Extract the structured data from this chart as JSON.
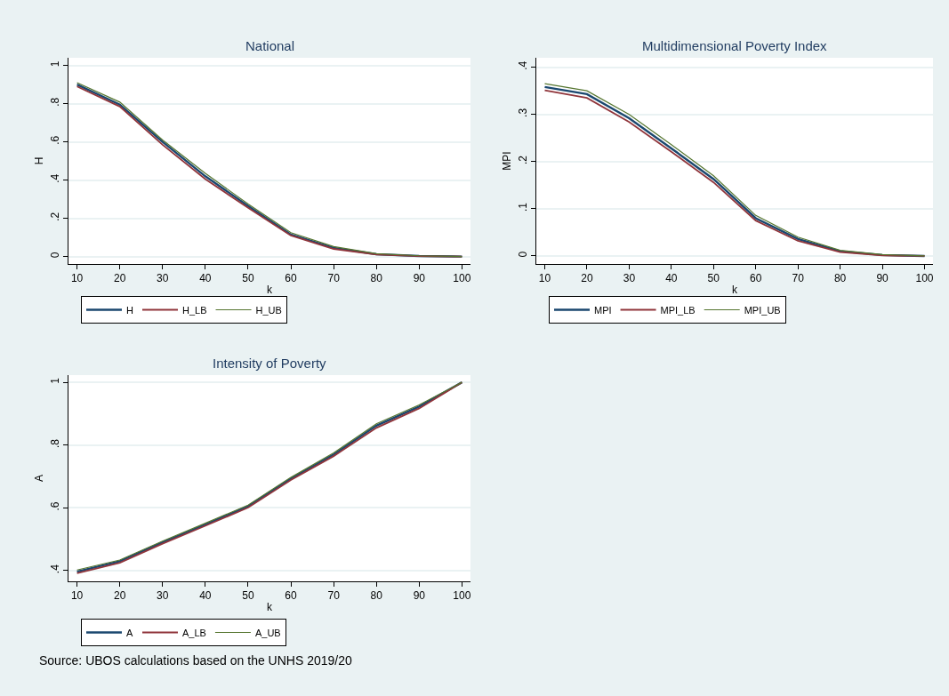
{
  "chart_data": [
    {
      "type": "line",
      "title": "National",
      "xlabel": "k",
      "ylabel": "H",
      "x": [
        10,
        20,
        30,
        40,
        50,
        60,
        70,
        80,
        90,
        100
      ],
      "series": [
        {
          "name": "H",
          "color": "#1a476f",
          "values": [
            0.9,
            0.795,
            0.6,
            0.42,
            0.265,
            0.115,
            0.045,
            0.012,
            0.003,
            0.0
          ]
        },
        {
          "name": "H_LB",
          "color": "#90353b",
          "values": [
            0.89,
            0.785,
            0.585,
            0.405,
            0.255,
            0.11,
            0.04,
            0.01,
            0.002,
            0.0
          ]
        },
        {
          "name": "H_UB",
          "color": "#55752f",
          "values": [
            0.91,
            0.808,
            0.61,
            0.435,
            0.275,
            0.125,
            0.052,
            0.015,
            0.004,
            0.0
          ]
        }
      ],
      "xlim": [
        8,
        102
      ],
      "xticks": [
        10,
        20,
        30,
        40,
        50,
        60,
        70,
        80,
        90,
        100
      ],
      "ylim": [
        -0.039,
        1.04
      ],
      "yticks": [
        0,
        {
          "value": 0.2,
          "label": ".2"
        },
        {
          "value": 0.4,
          "label": ".4"
        },
        {
          "value": 0.6,
          "label": ".6"
        },
        {
          "value": 0.8,
          "label": ".8"
        },
        1
      ],
      "grid": "y",
      "legend": "bottom"
    },
    {
      "type": "line",
      "title": "Multidimensional Poverty Index",
      "xlabel": "k",
      "ylabel": "MPI",
      "x": [
        10,
        20,
        30,
        40,
        50,
        60,
        70,
        80,
        90,
        100
      ],
      "series": [
        {
          "name": "MPI",
          "color": "#1a476f",
          "values": [
            0.358,
            0.343,
            0.292,
            0.228,
            0.163,
            0.08,
            0.036,
            0.01,
            0.002,
            0.0
          ]
        },
        {
          "name": "MPI_LB",
          "color": "#90353b",
          "values": [
            0.351,
            0.335,
            0.284,
            0.221,
            0.156,
            0.075,
            0.032,
            0.008,
            0.001,
            0.0
          ]
        },
        {
          "name": "MPI_UB",
          "color": "#55752f",
          "values": [
            0.365,
            0.35,
            0.3,
            0.236,
            0.17,
            0.086,
            0.04,
            0.012,
            0.003,
            0.0
          ]
        }
      ],
      "xlim": [
        8,
        102
      ],
      "xticks": [
        10,
        20,
        30,
        40,
        50,
        60,
        70,
        80,
        90,
        100
      ],
      "ylim": [
        -0.017,
        0.42
      ],
      "yticks": [
        0,
        {
          "value": 0.1,
          "label": ".1"
        },
        {
          "value": 0.2,
          "label": ".2"
        },
        {
          "value": 0.3,
          "label": ".3"
        },
        {
          "value": 0.4,
          "label": ".4"
        }
      ],
      "grid": "y",
      "legend": "bottom"
    },
    {
      "type": "line",
      "title": "Intensity of Poverty",
      "xlabel": "k",
      "ylabel": "A",
      "x": [
        10,
        20,
        30,
        40,
        50,
        60,
        70,
        80,
        90,
        100
      ],
      "series": [
        {
          "name": "A",
          "color": "#1a476f",
          "values": [
            0.397,
            0.43,
            0.49,
            0.547,
            0.605,
            0.693,
            0.77,
            0.862,
            0.923,
            1.0
          ]
        },
        {
          "name": "A_LB",
          "color": "#90353b",
          "values": [
            0.392,
            0.425,
            0.486,
            0.543,
            0.601,
            0.689,
            0.765,
            0.855,
            0.917,
            1.0
          ]
        },
        {
          "name": "A_UB",
          "color": "#55752f",
          "values": [
            0.402,
            0.434,
            0.494,
            0.551,
            0.609,
            0.697,
            0.775,
            0.868,
            0.928,
            1.0
          ]
        }
      ],
      "xlim": [
        8,
        102
      ],
      "xticks": [
        10,
        20,
        30,
        40,
        50,
        60,
        70,
        80,
        90,
        100
      ],
      "ylim": [
        0.366,
        1.023
      ],
      "yticks": [
        {
          "value": 0.4,
          "label": ".4"
        },
        {
          "value": 0.6,
          "label": ".6"
        },
        {
          "value": 0.8,
          "label": ".8"
        },
        1
      ],
      "grid": "y",
      "legend": "bottom",
      "annotations": [
        "Source: UBOS calculations based on the UNHS 2019/20"
      ]
    }
  ]
}
